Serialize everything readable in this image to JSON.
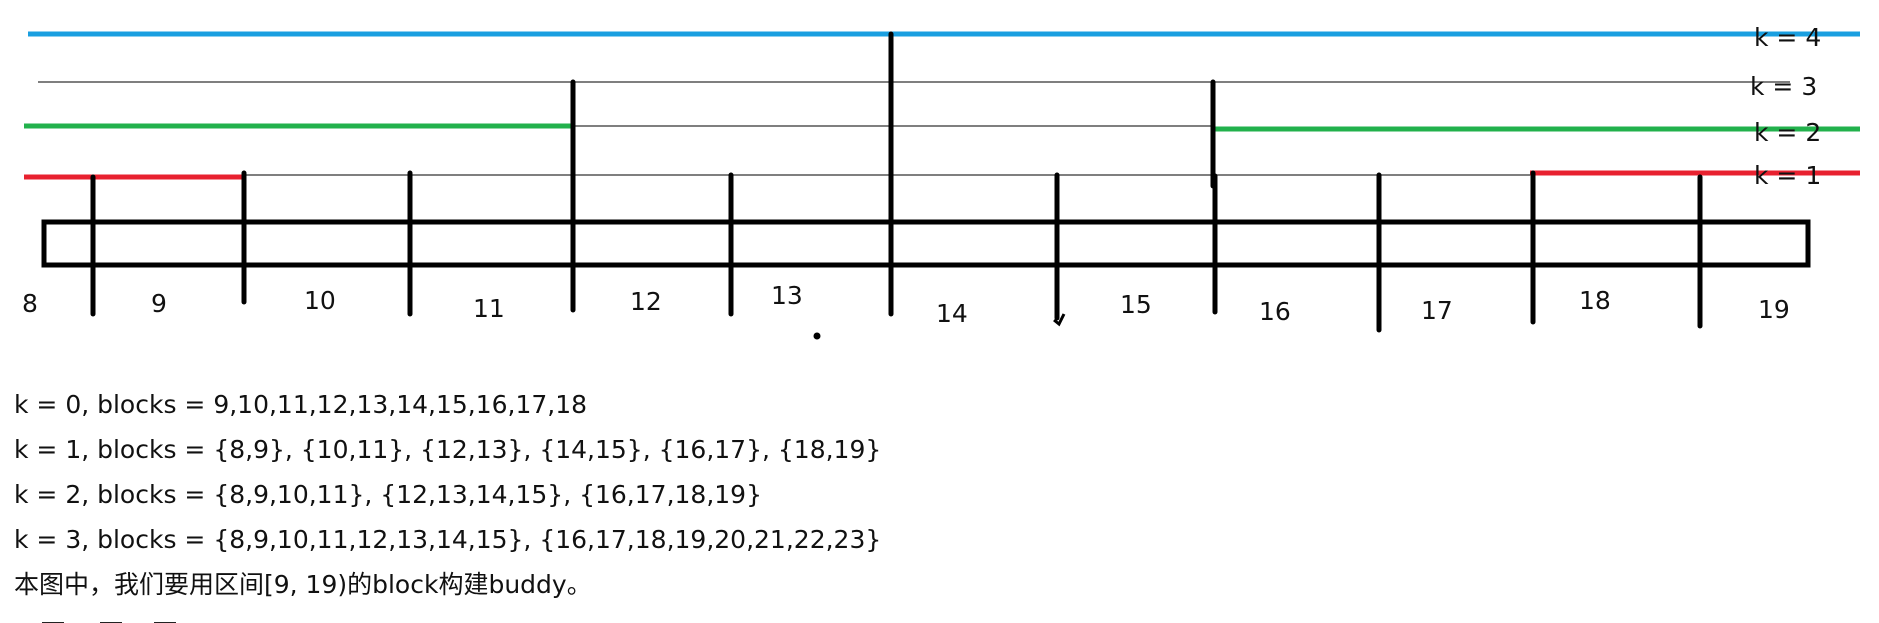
{
  "level_labels": [
    "k = 4",
    "k = 3",
    "k = 2",
    "k = 1"
  ],
  "block_numbers": [
    "8",
    "9",
    "10",
    "11",
    "12",
    "13",
    "14",
    "15",
    "16",
    "17",
    "18",
    "19"
  ],
  "notes": [
    "k = 0,  blocks = 9,10,11,12,13,14,15,16,17,18",
    "k = 1,  blocks = {8,9}, {10,11}, {12,13}, {14,15}, {16,17}, {18,19}",
    "k = 2,  blocks = {8,9,10,11}, {12,13,14,15}, {16,17,18,19}",
    "k = 3, blocks = {8,9,10,11,12,13,14,15}, {16,17,18,19,20,21,22,23}",
    "本图中，我们要用区间[9, 19)的block构建buddy。"
  ],
  "colors": {
    "k4_line": "#1a9fe0",
    "k2_line": "#22b14c",
    "k1_line": "#e8212f",
    "k3_line": "#333333",
    "ink": "#000000"
  }
}
